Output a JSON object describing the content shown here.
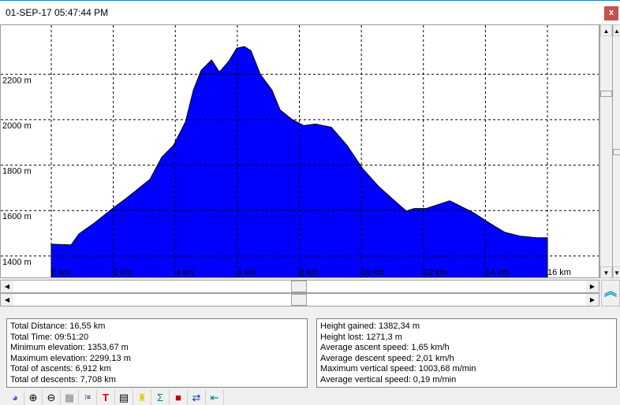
{
  "window": {
    "title": "01-SEP-17 05:47:44 PM",
    "close_label": "x"
  },
  "chart_data": {
    "type": "area",
    "xlim": [
      0,
      16
    ],
    "ylim": [
      1306,
      2416
    ],
    "x_ticks": [
      0,
      2,
      4,
      6,
      8,
      10,
      12,
      14,
      16
    ],
    "x_tick_labels": [
      "0 km",
      "2 km",
      "4 km",
      "6 km",
      "8 km",
      "10 km",
      "12 km",
      "14 km",
      "16 km"
    ],
    "y_ticks": [
      1400,
      1600,
      1800,
      2000,
      2200
    ],
    "y_tick_labels": [
      "1400 m",
      "1600 m",
      "1800 m",
      "2000 m",
      "2200 m"
    ],
    "grid": true,
    "fill_color": "#0000ff",
    "x": [
      0,
      0.64,
      0.89,
      1.4,
      2.04,
      2.42,
      2.8,
      3.18,
      3.56,
      3.94,
      4.33,
      4.58,
      4.83,
      5.17,
      5.42,
      5.73,
      5.98,
      6.23,
      6.44,
      6.74,
      7.12,
      7.38,
      7.76,
      8.14,
      8.52,
      9.03,
      9.54,
      10.05,
      10.56,
      11.07,
      11.45,
      11.7,
      12.09,
      12.85,
      13.61,
      14.12,
      14.63,
      15.14,
      15.65,
      16.0
    ],
    "y": [
      1452,
      1449,
      1497,
      1546,
      1616,
      1654,
      1696,
      1737,
      1835,
      1887,
      1991,
      2130,
      2217,
      2263,
      2210,
      2259,
      2315,
      2322,
      2304,
      2200,
      2130,
      2043,
      2002,
      1974,
      1981,
      1967,
      1887,
      1783,
      1706,
      1643,
      1598,
      1609,
      1609,
      1643,
      1591,
      1546,
      1504,
      1487,
      1480,
      1480
    ]
  },
  "stats_left": [
    "Total Distance: 16,55 km",
    "Total Time: 09:51:20",
    "Minimum elevation: 1353,67 m",
    "Maximum elevation: 2299,13 m",
    "Total of ascents: 6,912 km",
    "Total of descents: 7,708 km"
  ],
  "stats_right": [
    "Height gained: 1382,34 m",
    "Height lost: 1271,3 m",
    "Average ascent speed: 1,65 km/h",
    "Average descent speed: 2,01 km/h",
    "Maximum vertical speed: 1003,68 m/min",
    "Average vertical speed: 0,19 m/min"
  ],
  "toolbar": [
    "globe-icon",
    "zoom-in-icon",
    "zoom-out-icon",
    "grid-icon",
    "list-options-icon",
    "text-search-icon",
    "notes-icon",
    "stamp-icon",
    "sum-icon",
    "book-icon",
    "swap-icon",
    "exit-icon"
  ]
}
